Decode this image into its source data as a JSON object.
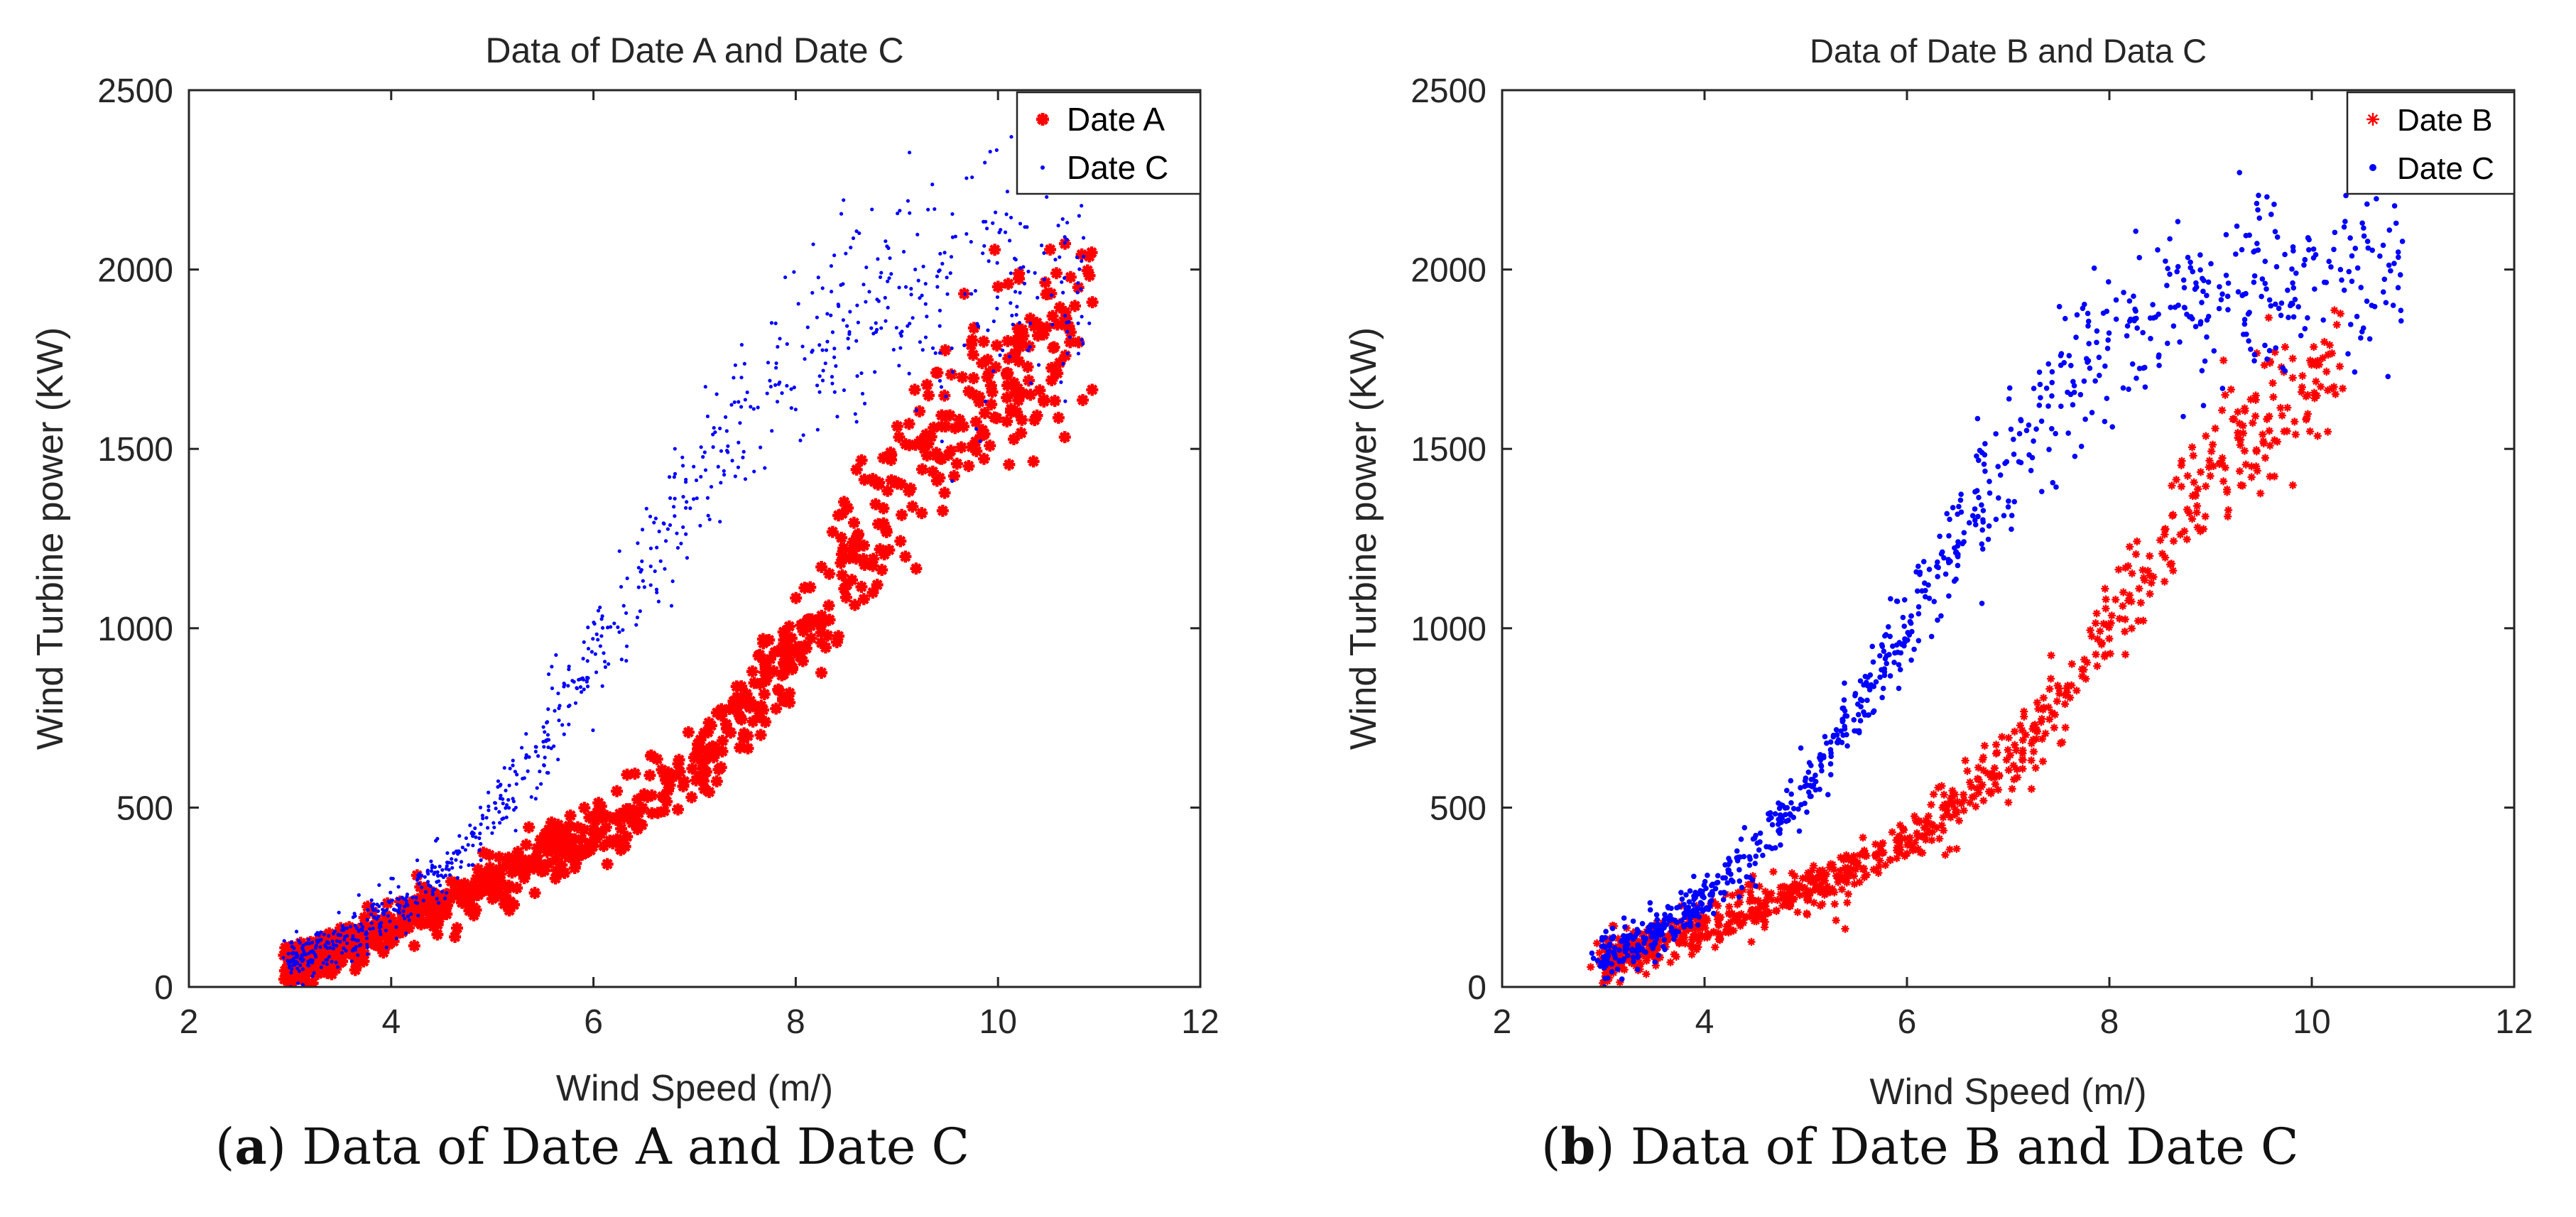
{
  "chart_data": [
    {
      "type": "scatter",
      "panel": "a",
      "title": "Data of Date A and Date C",
      "xlabel": "Wind Speed (m/)",
      "ylabel": "Wind Turbine power (KW)",
      "xlim": [
        2,
        12
      ],
      "ylim": [
        0,
        2500
      ],
      "xticks": [
        2,
        4,
        6,
        8,
        10,
        12
      ],
      "yticks": [
        0,
        500,
        1000,
        1500,
        2000,
        2500
      ],
      "grid": false,
      "legend_position": "top-right",
      "series": [
        {
          "name": "Date A",
          "marker": "asterisk-large",
          "color": "#ff0000",
          "x": [
            3.0,
            3.5,
            4.0,
            4.5,
            5.0,
            5.5,
            6.0,
            6.5,
            7.0,
            7.5,
            8.0,
            8.5,
            9.0,
            9.5,
            10.0,
            10.5,
            10.9
          ],
          "y": [
            60,
            110,
            160,
            230,
            290,
            360,
            430,
            510,
            620,
            760,
            950,
            1180,
            1380,
            1560,
            1700,
            1810,
            1870
          ]
        },
        {
          "name": "Date C",
          "marker": "dot-small",
          "color": "#0000ff",
          "x": [
            3.0,
            3.5,
            4.0,
            4.5,
            5.0,
            5.5,
            6.0,
            6.5,
            7.0,
            7.5,
            8.0,
            8.5,
            9.0,
            9.5,
            10.0,
            10.5,
            10.9
          ],
          "y": [
            70,
            130,
            210,
            320,
            480,
            680,
            930,
            1150,
            1380,
            1570,
            1740,
            1860,
            1930,
            1960,
            1975,
            1980,
            1980
          ]
        }
      ]
    },
    {
      "type": "scatter",
      "panel": "b",
      "title": "Data of Date B and Data C",
      "xlabel": "Wind Speed (m/)",
      "ylabel": "Wind Turbine power (KW)",
      "xlim": [
        2,
        12
      ],
      "ylim": [
        0,
        2500
      ],
      "xticks": [
        2,
        4,
        6,
        8,
        10,
        12
      ],
      "yticks": [
        0,
        500,
        1000,
        1500,
        2000,
        2500
      ],
      "grid": false,
      "legend_position": "top-right",
      "series": [
        {
          "name": "Date B",
          "marker": "asterisk",
          "color": "#ff0000",
          "x": [
            3.0,
            3.5,
            4.0,
            4.5,
            5.0,
            5.5,
            6.0,
            6.5,
            7.0,
            7.5,
            8.0,
            8.5,
            9.0,
            9.5,
            10.0,
            10.3
          ],
          "y": [
            70,
            120,
            170,
            220,
            270,
            330,
            410,
            500,
            620,
            790,
            1000,
            1210,
            1430,
            1580,
            1700,
            1740
          ]
        },
        {
          "name": "Date C",
          "marker": "dot",
          "color": "#0000ff",
          "x": [
            3.0,
            3.5,
            4.0,
            4.5,
            5.0,
            5.5,
            6.0,
            6.5,
            7.0,
            7.5,
            8.0,
            8.5,
            9.0,
            9.5,
            10.0,
            10.5,
            10.9
          ],
          "y": [
            80,
            150,
            240,
            380,
            560,
            780,
            1020,
            1250,
            1460,
            1630,
            1780,
            1880,
            1940,
            1965,
            1975,
            1980,
            1985
          ]
        }
      ]
    }
  ],
  "captions": {
    "a": {
      "letter": "a",
      "text": " Data of Date A and Date C"
    },
    "b": {
      "letter": "b",
      "text": " Data of Date B and Date C"
    }
  },
  "colors": {
    "red": "#ff0000",
    "blue": "#0000ff",
    "axis": "#262626",
    "text": "#262626"
  }
}
